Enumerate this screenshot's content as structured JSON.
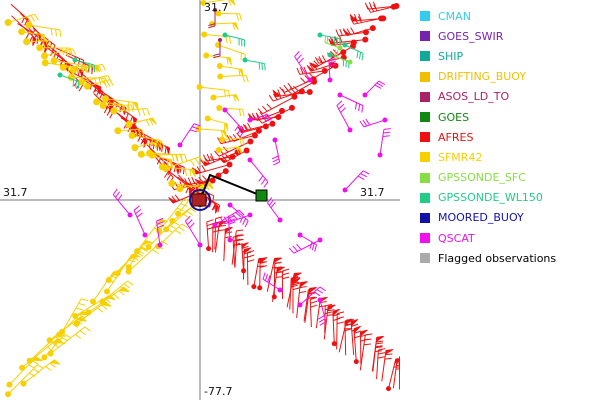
{
  "axes": {
    "top_label": "31.7",
    "left_label": "31.7",
    "right_label": "31.7",
    "bottom_label": "-77.7"
  },
  "legend": {
    "items": [
      {
        "label": "CMAN",
        "color": "#33ccee"
      },
      {
        "label": "GOES_SWIR",
        "color": "#7722aa"
      },
      {
        "label": "SHIP",
        "color": "#11aa99"
      },
      {
        "label": "DRIFTING_BUOY",
        "color": "#f2bf00"
      },
      {
        "label": "ASOS_LD_TO",
        "color": "#aa2266"
      },
      {
        "label": "GOES",
        "color": "#118811"
      },
      {
        "label": "AFRES",
        "color": "#ee1111"
      },
      {
        "label": "SFMR42",
        "color": "#f7d000"
      },
      {
        "label": "GPSSONDE_SFC",
        "color": "#88dd44"
      },
      {
        "label": "GPSSONDE_WL150",
        "color": "#22cc88"
      },
      {
        "label": "MOORED_BUOY",
        "color": "#1111aa"
      },
      {
        "label": "QSCAT",
        "color": "#ee11ee"
      },
      {
        "label": "Flagged observations",
        "color": "#aaaaaa",
        "text_color": "#000000"
      }
    ]
  },
  "observation_colors": {
    "afres": "#ee1111",
    "sfmr": "#f7d000",
    "qscat": "#ee11ee",
    "sonde": "#22cc88",
    "sonde_sfc": "#88dd44",
    "goes": "#118811",
    "moored": "#1111aa",
    "asos": "#aa2266"
  }
}
